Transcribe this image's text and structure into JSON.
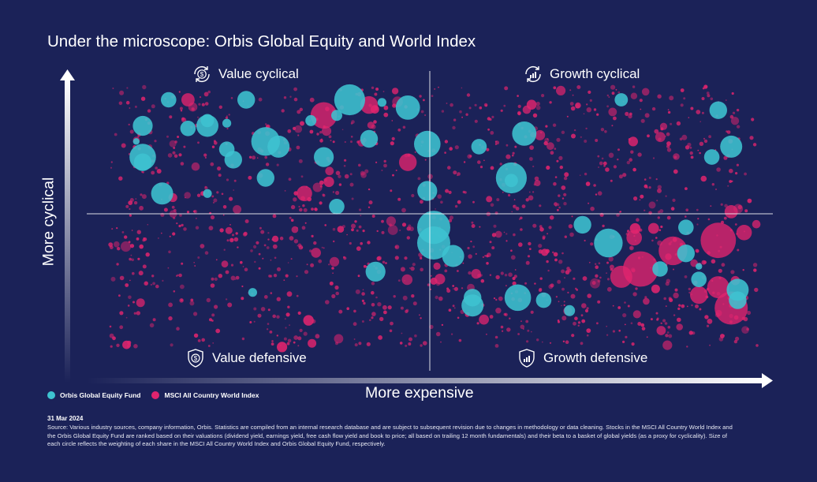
{
  "title": "Under the microscope: Orbis Global Equity and World Index",
  "quadrants": {
    "top_left": {
      "label": "Value cyclical",
      "icon": "dollar-cycle-icon"
    },
    "top_right": {
      "label": "Growth cyclical",
      "icon": "growth-cycle-icon"
    },
    "bottom_left": {
      "label": "Value defensive",
      "icon": "dollar-shield-icon"
    },
    "bottom_right": {
      "label": "Growth defensive",
      "icon": "growth-shield-icon"
    }
  },
  "legend": [
    {
      "name": "Orbis Global Equity Fund",
      "color": "#3ec3d0"
    },
    {
      "name": "MSCI All Country World Index",
      "color": "#e0246e"
    }
  ],
  "date": "31 Mar 2024",
  "source": "Source: Various industry sources, company information, Orbis. Statistics are compiled from an internal research database and are subject to subsequent revision due to changes in methodology or data cleaning. Stocks in the MSCI All Country World Index and the Orbis Global Equity Fund are ranked based on their valuations (dividend yield, earnings yield, free cash flow yield and book to price; all based on trailing 12 month fundamentals) and their beta to a basket of global yields (as a proxy for cyclicality). Size of each circle reflects the weighting of each share in the MSCI All Country World Index and Orbis Global Equity Fund, respectively.",
  "chart_data": {
    "type": "scatter",
    "xlabel": "More expensive",
    "ylabel": "More cyclical",
    "xlim": [
      0,
      1
    ],
    "ylim": [
      0,
      1
    ],
    "grid": false,
    "legend_position": "bottom-left",
    "background": "#1b2258",
    "series": [
      {
        "name": "Orbis Global Equity Fund",
        "color": "#3ec3d0",
        "points": [
          [
            0.05,
            0.85,
            0.9
          ],
          [
            0.05,
            0.73,
            1.2
          ],
          [
            0.05,
            0.71,
            0.8
          ],
          [
            0.04,
            0.79,
            0.3
          ],
          [
            0.08,
            0.59,
            1.0
          ],
          [
            0.09,
            0.95,
            0.7
          ],
          [
            0.12,
            0.84,
            0.7
          ],
          [
            0.15,
            0.85,
            1.0
          ],
          [
            0.15,
            0.87,
            0.6
          ],
          [
            0.18,
            0.86,
            0.4
          ],
          [
            0.18,
            0.76,
            0.7
          ],
          [
            0.19,
            0.72,
            0.8
          ],
          [
            0.21,
            0.95,
            0.8
          ],
          [
            0.24,
            0.79,
            1.3
          ],
          [
            0.26,
            0.77,
            1.0
          ],
          [
            0.24,
            0.65,
            0.8
          ],
          [
            0.15,
            0.59,
            0.4
          ],
          [
            0.31,
            0.87,
            0.5
          ],
          [
            0.33,
            0.73,
            0.9
          ],
          [
            0.37,
            0.95,
            1.4
          ],
          [
            0.4,
            0.8,
            0.8
          ],
          [
            0.42,
            0.94,
            0.4
          ],
          [
            0.46,
            0.92,
            1.1
          ],
          [
            0.35,
            0.89,
            0.5
          ],
          [
            0.49,
            0.78,
            1.2
          ],
          [
            0.49,
            0.6,
            0.9
          ],
          [
            0.5,
            0.46,
            1.5
          ],
          [
            0.5,
            0.4,
            1.5
          ],
          [
            0.53,
            0.35,
            1.0
          ],
          [
            0.35,
            0.54,
            0.7
          ],
          [
            0.41,
            0.29,
            0.9
          ],
          [
            0.22,
            0.21,
            0.4
          ],
          [
            0.57,
            0.77,
            0.7
          ],
          [
            0.62,
            0.65,
            1.4
          ],
          [
            0.62,
            0.64,
            0.6
          ],
          [
            0.64,
            0.82,
            1.1
          ],
          [
            0.56,
            0.16,
            1.0
          ],
          [
            0.56,
            0.19,
            0.8
          ],
          [
            0.63,
            0.19,
            1.2
          ],
          [
            0.67,
            0.18,
            0.7
          ],
          [
            0.71,
            0.14,
            0.5
          ],
          [
            0.73,
            0.47,
            0.8
          ],
          [
            0.77,
            0.4,
            1.3
          ],
          [
            0.79,
            0.95,
            0.6
          ],
          [
            0.85,
            0.3,
            0.7
          ],
          [
            0.89,
            0.46,
            0.7
          ],
          [
            0.89,
            0.36,
            0.8
          ],
          [
            0.91,
            0.31,
            0.3
          ],
          [
            0.91,
            0.26,
            0.7
          ],
          [
            0.94,
            0.91,
            0.8
          ],
          [
            0.93,
            0.73,
            0.7
          ],
          [
            0.96,
            0.77,
            1.0
          ],
          [
            0.97,
            0.22,
            1.0
          ],
          [
            0.97,
            0.18,
            0.8
          ]
        ]
      },
      {
        "name": "MSCI All Country World Index",
        "color": "#e0246e",
        "points": [
          [
            0.87,
            0.37,
            1.3
          ],
          [
            0.94,
            0.41,
            1.6
          ],
          [
            0.82,
            0.3,
            1.6
          ],
          [
            0.79,
            0.27,
            1.0
          ],
          [
            0.96,
            0.15,
            1.5
          ],
          [
            0.94,
            0.23,
            1.0
          ],
          [
            0.91,
            0.2,
            0.8
          ],
          [
            0.33,
            0.89,
            1.2
          ],
          [
            0.3,
            0.59,
            0.7
          ],
          [
            0.12,
            0.95,
            0.6
          ],
          [
            0.46,
            0.71,
            0.8
          ],
          [
            0.4,
            0.93,
            0.8
          ],
          [
            0.98,
            0.44,
            0.7
          ],
          [
            0.96,
            0.52,
            0.6
          ],
          [
            0.81,
            0.42,
            0.7
          ]
        ]
      }
    ]
  }
}
